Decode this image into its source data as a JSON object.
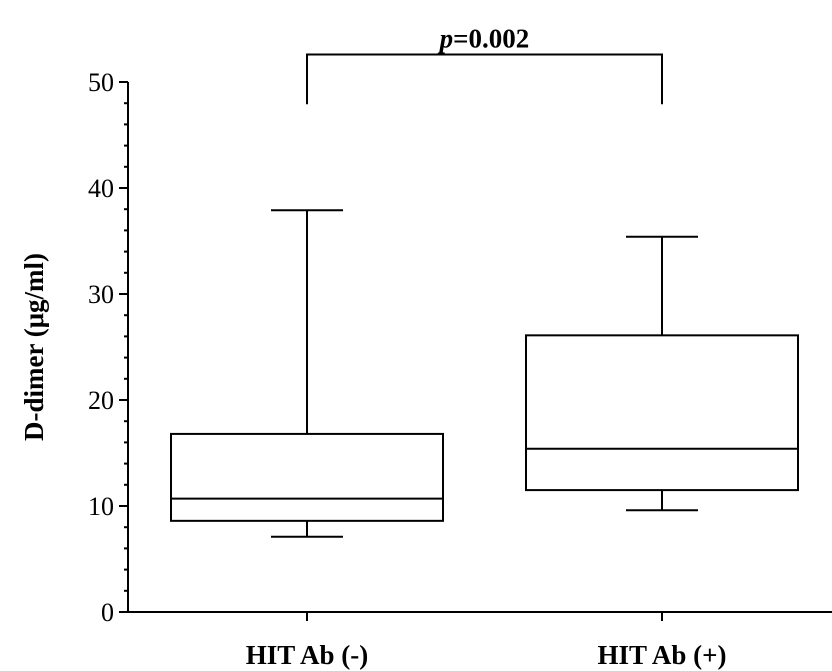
{
  "chart_data": {
    "type": "box",
    "ylabel": "D-dimer (μg/ml)",
    "ylim": [
      0,
      50
    ],
    "yticks": [
      0,
      10,
      20,
      30,
      40,
      50
    ],
    "ytick_labels": [
      "0",
      "10",
      "20",
      "30",
      "40",
      "50"
    ],
    "minor_ticks_per_major": 4,
    "categories": [
      "HIT Ab (-)",
      "HIT Ab (+)"
    ],
    "boxes": [
      {
        "name": "HIT Ab (-)",
        "whisker_low": 7.1,
        "q1": 8.6,
        "median": 10.7,
        "q3": 16.8,
        "whisker_high": 37.9
      },
      {
        "name": "HIT Ab (+)",
        "whisker_low": 9.6,
        "q1": 11.5,
        "median": 15.4,
        "q3": 26.1,
        "whisker_high": 35.4
      }
    ],
    "significance": {
      "p_symbol": "p",
      "p_value": "=0.002",
      "bracket_y": 52.6,
      "bracket_drop_y": 47.9
    }
  }
}
